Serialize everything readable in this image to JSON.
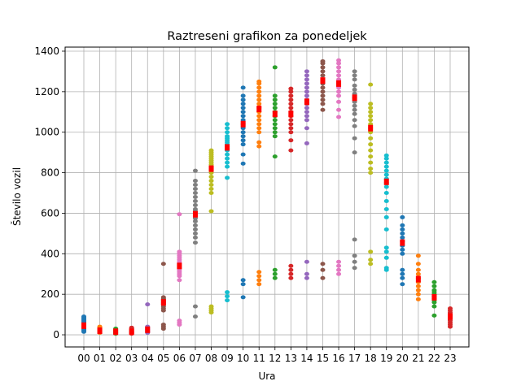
{
  "chart_data": {
    "type": "scatter",
    "title": "Raztreseni grafikon za ponedeljek",
    "xlabel": "Ura",
    "ylabel": "Število vozil",
    "categories": [
      "00",
      "01",
      "02",
      "03",
      "04",
      "05",
      "06",
      "07",
      "08",
      "09",
      "10",
      "11",
      "12",
      "13",
      "14",
      "15",
      "16",
      "17",
      "18",
      "19",
      "20",
      "21",
      "22",
      "23"
    ],
    "yticks": [
      0,
      200,
      400,
      600,
      800,
      1000,
      1200,
      1400
    ],
    "ylim": [
      -60,
      1420
    ],
    "grid": true,
    "colors": [
      "#1f77b4",
      "#ff7f0e",
      "#2ca02c",
      "#d62728",
      "#9467bd",
      "#8c564b",
      "#e377c2",
      "#7f7f7f",
      "#bcbd22",
      "#17becf"
    ],
    "mean_color": "#ff0000",
    "series": [
      {
        "hour": "00",
        "mean": 45,
        "points": [
          15,
          20,
          25,
          30,
          35,
          40,
          42,
          48,
          50,
          55,
          60,
          65,
          70,
          75,
          80,
          85,
          90
        ]
      },
      {
        "hour": "01",
        "mean": 20,
        "points": [
          10,
          12,
          15,
          18,
          20,
          22,
          25,
          28,
          30,
          35,
          40
        ]
      },
      {
        "hour": "02",
        "mean": 15,
        "points": [
          5,
          8,
          10,
          12,
          15,
          18,
          20,
          22,
          25,
          30
        ]
      },
      {
        "hour": "03",
        "mean": 15,
        "points": [
          5,
          8,
          10,
          12,
          15,
          18,
          20,
          25,
          30,
          35
        ]
      },
      {
        "hour": "04",
        "mean": 25,
        "points": [
          10,
          15,
          18,
          20,
          25,
          28,
          30,
          35,
          40,
          150
        ]
      },
      {
        "hour": "05",
        "mean": 160,
        "points": [
          30,
          40,
          50,
          120,
          130,
          140,
          150,
          155,
          160,
          165,
          170,
          175,
          180,
          185,
          350
        ]
      },
      {
        "hour": "06",
        "mean": 340,
        "points": [
          50,
          60,
          70,
          270,
          290,
          300,
          310,
          320,
          330,
          340,
          350,
          360,
          370,
          380,
          390,
          400,
          410,
          595
        ]
      },
      {
        "hour": "07",
        "mean": 595,
        "points": [
          90,
          140,
          455,
          480,
          500,
          520,
          540,
          560,
          575,
          590,
          600,
          610,
          620,
          640,
          660,
          680,
          700,
          720,
          740,
          760,
          810
        ]
      },
      {
        "hour": "08",
        "mean": 820,
        "points": [
          110,
          120,
          130,
          140,
          610,
          700,
          720,
          740,
          760,
          780,
          800,
          820,
          830,
          840,
          850,
          860,
          870,
          880,
          890,
          900,
          910
        ]
      },
      {
        "hour": "09",
        "mean": 925,
        "points": [
          170,
          190,
          210,
          775,
          830,
          850,
          870,
          890,
          910,
          920,
          930,
          940,
          950,
          960,
          970,
          980,
          1000,
          1020,
          1040
        ]
      },
      {
        "hour": "10",
        "mean": 1040,
        "points": [
          185,
          250,
          270,
          845,
          890,
          940,
          960,
          980,
          1000,
          1020,
          1040,
          1060,
          1080,
          1100,
          1120,
          1140,
          1160,
          1180,
          1220
        ]
      },
      {
        "hour": "11",
        "mean": 1115,
        "points": [
          250,
          270,
          290,
          310,
          930,
          950,
          1000,
          1020,
          1040,
          1060,
          1080,
          1100,
          1120,
          1140,
          1160,
          1180,
          1200,
          1220,
          1240,
          1250
        ]
      },
      {
        "hour": "12",
        "mean": 1090,
        "points": [
          280,
          300,
          320,
          880,
          980,
          1000,
          1020,
          1040,
          1060,
          1080,
          1100,
          1120,
          1140,
          1160,
          1180,
          1320
        ]
      },
      {
        "hour": "13",
        "mean": 1090,
        "points": [
          280,
          300,
          320,
          340,
          910,
          960,
          1000,
          1020,
          1040,
          1060,
          1080,
          1100,
          1120,
          1140,
          1160,
          1180,
          1200,
          1215
        ]
      },
      {
        "hour": "14",
        "mean": 1150,
        "points": [
          280,
          300,
          360,
          945,
          1020,
          1060,
          1080,
          1100,
          1120,
          1140,
          1160,
          1180,
          1200,
          1220,
          1240,
          1260,
          1280,
          1300
        ]
      },
      {
        "hour": "15",
        "mean": 1255,
        "points": [
          280,
          320,
          350,
          1110,
          1140,
          1160,
          1180,
          1200,
          1220,
          1240,
          1260,
          1280,
          1300,
          1320,
          1340,
          1350
        ]
      },
      {
        "hour": "16",
        "mean": 1240,
        "points": [
          300,
          320,
          340,
          360,
          1075,
          1110,
          1150,
          1180,
          1200,
          1220,
          1240,
          1260,
          1280,
          1300,
          1320,
          1340,
          1355
        ]
      },
      {
        "hour": "17",
        "mean": 1170,
        "points": [
          330,
          360,
          390,
          470,
          900,
          970,
          1030,
          1060,
          1090,
          1110,
          1130,
          1150,
          1170,
          1190,
          1210,
          1230,
          1260,
          1280,
          1300
        ]
      },
      {
        "hour": "18",
        "mean": 1020,
        "points": [
          350,
          370,
          410,
          800,
          820,
          850,
          880,
          910,
          940,
          970,
          1000,
          1020,
          1040,
          1060,
          1080,
          1100,
          1120,
          1140,
          1235
        ]
      },
      {
        "hour": "19",
        "mean": 755,
        "points": [
          320,
          330,
          380,
          410,
          430,
          520,
          580,
          620,
          660,
          700,
          730,
          750,
          770,
          790,
          810,
          830,
          850,
          870,
          885
        ]
      },
      {
        "hour": "20",
        "mean": 455,
        "points": [
          250,
          280,
          300,
          320,
          400,
          420,
          440,
          460,
          480,
          500,
          520,
          540,
          580
        ]
      },
      {
        "hour": "21",
        "mean": 275,
        "points": [
          175,
          200,
          220,
          240,
          260,
          280,
          300,
          320,
          350,
          390
        ]
      },
      {
        "hour": "22",
        "mean": 185,
        "points": [
          95,
          140,
          160,
          170,
          180,
          190,
          200,
          210,
          220,
          240,
          260
        ]
      },
      {
        "hour": "23",
        "mean": 90,
        "points": [
          40,
          50,
          60,
          70,
          80,
          90,
          100,
          110,
          120,
          130
        ]
      }
    ]
  }
}
